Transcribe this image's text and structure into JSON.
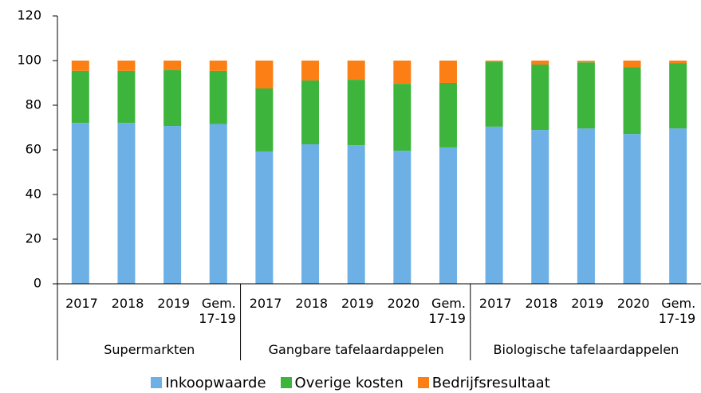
{
  "chart_data": {
    "type": "stacked_bar",
    "groups": [
      {
        "label": "Supermarkten",
        "categories": [
          "2017",
          "2018",
          "2019",
          "Gem.\n17-19"
        ]
      },
      {
        "label": "Gangbare tafelaardappelen",
        "categories": [
          "2017",
          "2018",
          "2019",
          "2020",
          "Gem.\n17-19"
        ]
      },
      {
        "label": "Biologische tafelaardappelen",
        "categories": [
          "2017",
          "2018",
          "2019",
          "2020",
          "Gem.\n17-19"
        ]
      }
    ],
    "series": [
      {
        "name": "Inkoopwaarde",
        "color": "#6cb0e6",
        "values": [
          72.1,
          72.1,
          70.7,
          71.6,
          59.3,
          62.5,
          62.1,
          59.6,
          61.1,
          70.4,
          68.9,
          69.6,
          67.1,
          69.6
        ]
      },
      {
        "name": "Overige kosten",
        "color": "#3db53d",
        "values": [
          23.3,
          23.3,
          25.0,
          23.8,
          28.2,
          28.6,
          29.3,
          30.0,
          28.9,
          28.9,
          29.3,
          29.6,
          30.0,
          29.3
        ]
      },
      {
        "name": "Bedrijfsresultaat",
        "color": "#fb7f14",
        "values": [
          4.6,
          4.6,
          4.3,
          4.6,
          12.5,
          8.9,
          8.6,
          10.4,
          10.0,
          0.7,
          1.8,
          0.7,
          2.9,
          1.1
        ]
      }
    ],
    "ylim": [
      0,
      120
    ],
    "yticks": [
      0,
      20,
      40,
      60,
      80,
      100,
      120
    ],
    "grid": false,
    "legend": "bottom"
  }
}
